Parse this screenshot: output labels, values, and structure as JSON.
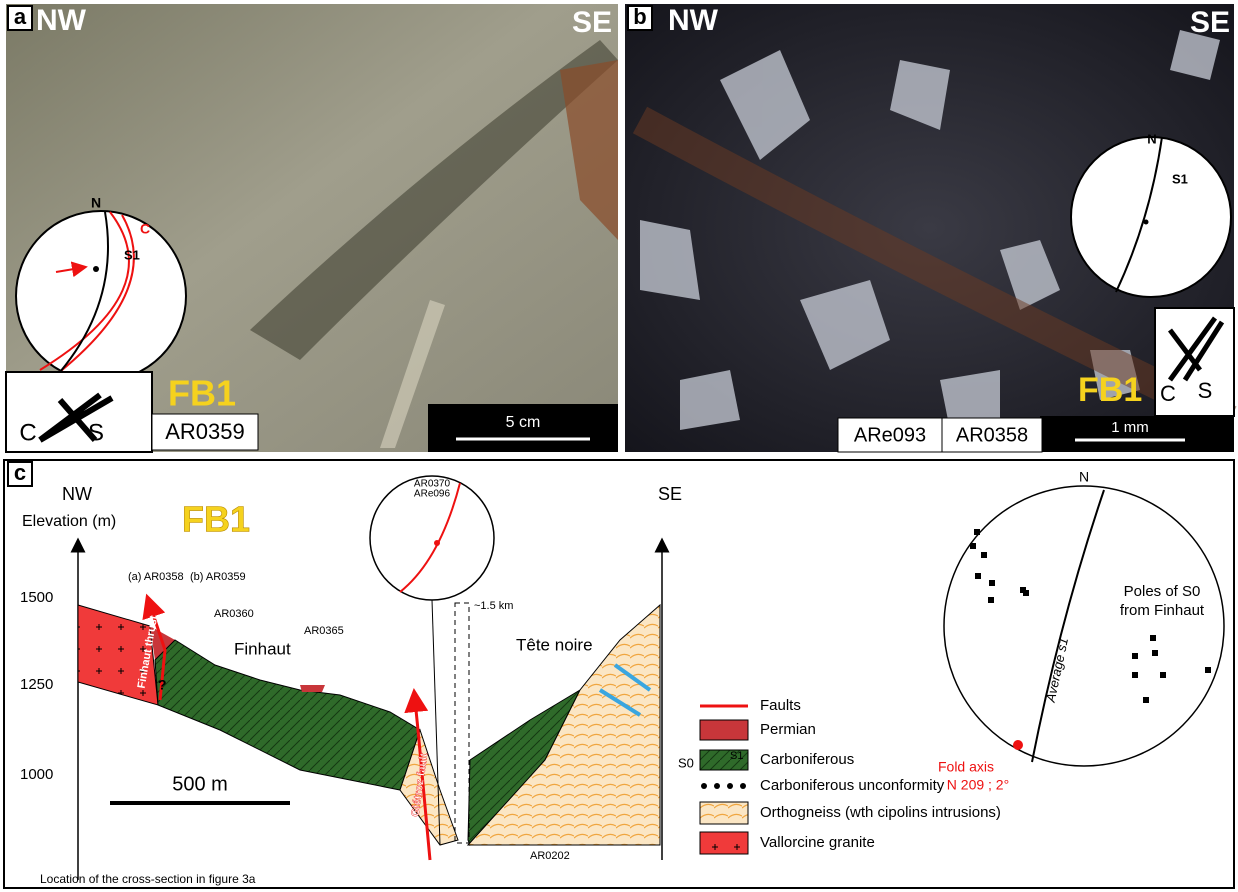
{
  "panel_a": {
    "label": "a",
    "left": "NW",
    "right": "SE",
    "stereonet": {
      "north": "N",
      "plane_c": "C",
      "plane_s1": "S1"
    },
    "kinematics": {
      "c": "C",
      "s": "S"
    },
    "zone": "FB1",
    "samples": [
      "AR0359"
    ],
    "scale": "5 cm"
  },
  "panel_b": {
    "label": "b",
    "left": "NW",
    "right": "SE",
    "stereonet": {
      "north": "N",
      "plane_s1": "S1"
    },
    "kinematics": {
      "c": "C",
      "s": "S"
    },
    "zone": "FB1",
    "samples": [
      "ARe093",
      "AR0358"
    ],
    "scale": "1 mm"
  },
  "panel_c": {
    "label": "c",
    "left": "NW",
    "right": "SE",
    "axis_title": "Elevation (m)",
    "axis_ticks": [
      "1500",
      "1250",
      "1000"
    ],
    "zone": "FB1",
    "scale": "500 m",
    "samples": [
      "(a) AR0358",
      "(b) AR0359",
      "AR0360",
      "AR0365",
      "AR0202"
    ],
    "places": [
      "Finhaut",
      "Tête noire"
    ],
    "faults": [
      "Finhaut thrust",
      "Giétroz fault"
    ],
    "uncertain": "?",
    "distance": "~1.5 km",
    "inset_stereonet": [
      "AR0370",
      "ARe096"
    ],
    "legend": [
      "Faults",
      "Permian",
      "S0",
      "S1",
      "Carboniferous",
      "Carboniferous unconformity",
      "Orthogneiss (wth cipolins intrusions)",
      "Vallorcine granite"
    ],
    "stereonet": {
      "north": "N",
      "poles": [
        "Poles of S0",
        "from Finhaut"
      ],
      "average": "Average s1",
      "fold_axis": [
        "Fold axis",
        "N 209 ; 2°"
      ]
    },
    "caption": "Location of the cross-section in figure 3a"
  }
}
